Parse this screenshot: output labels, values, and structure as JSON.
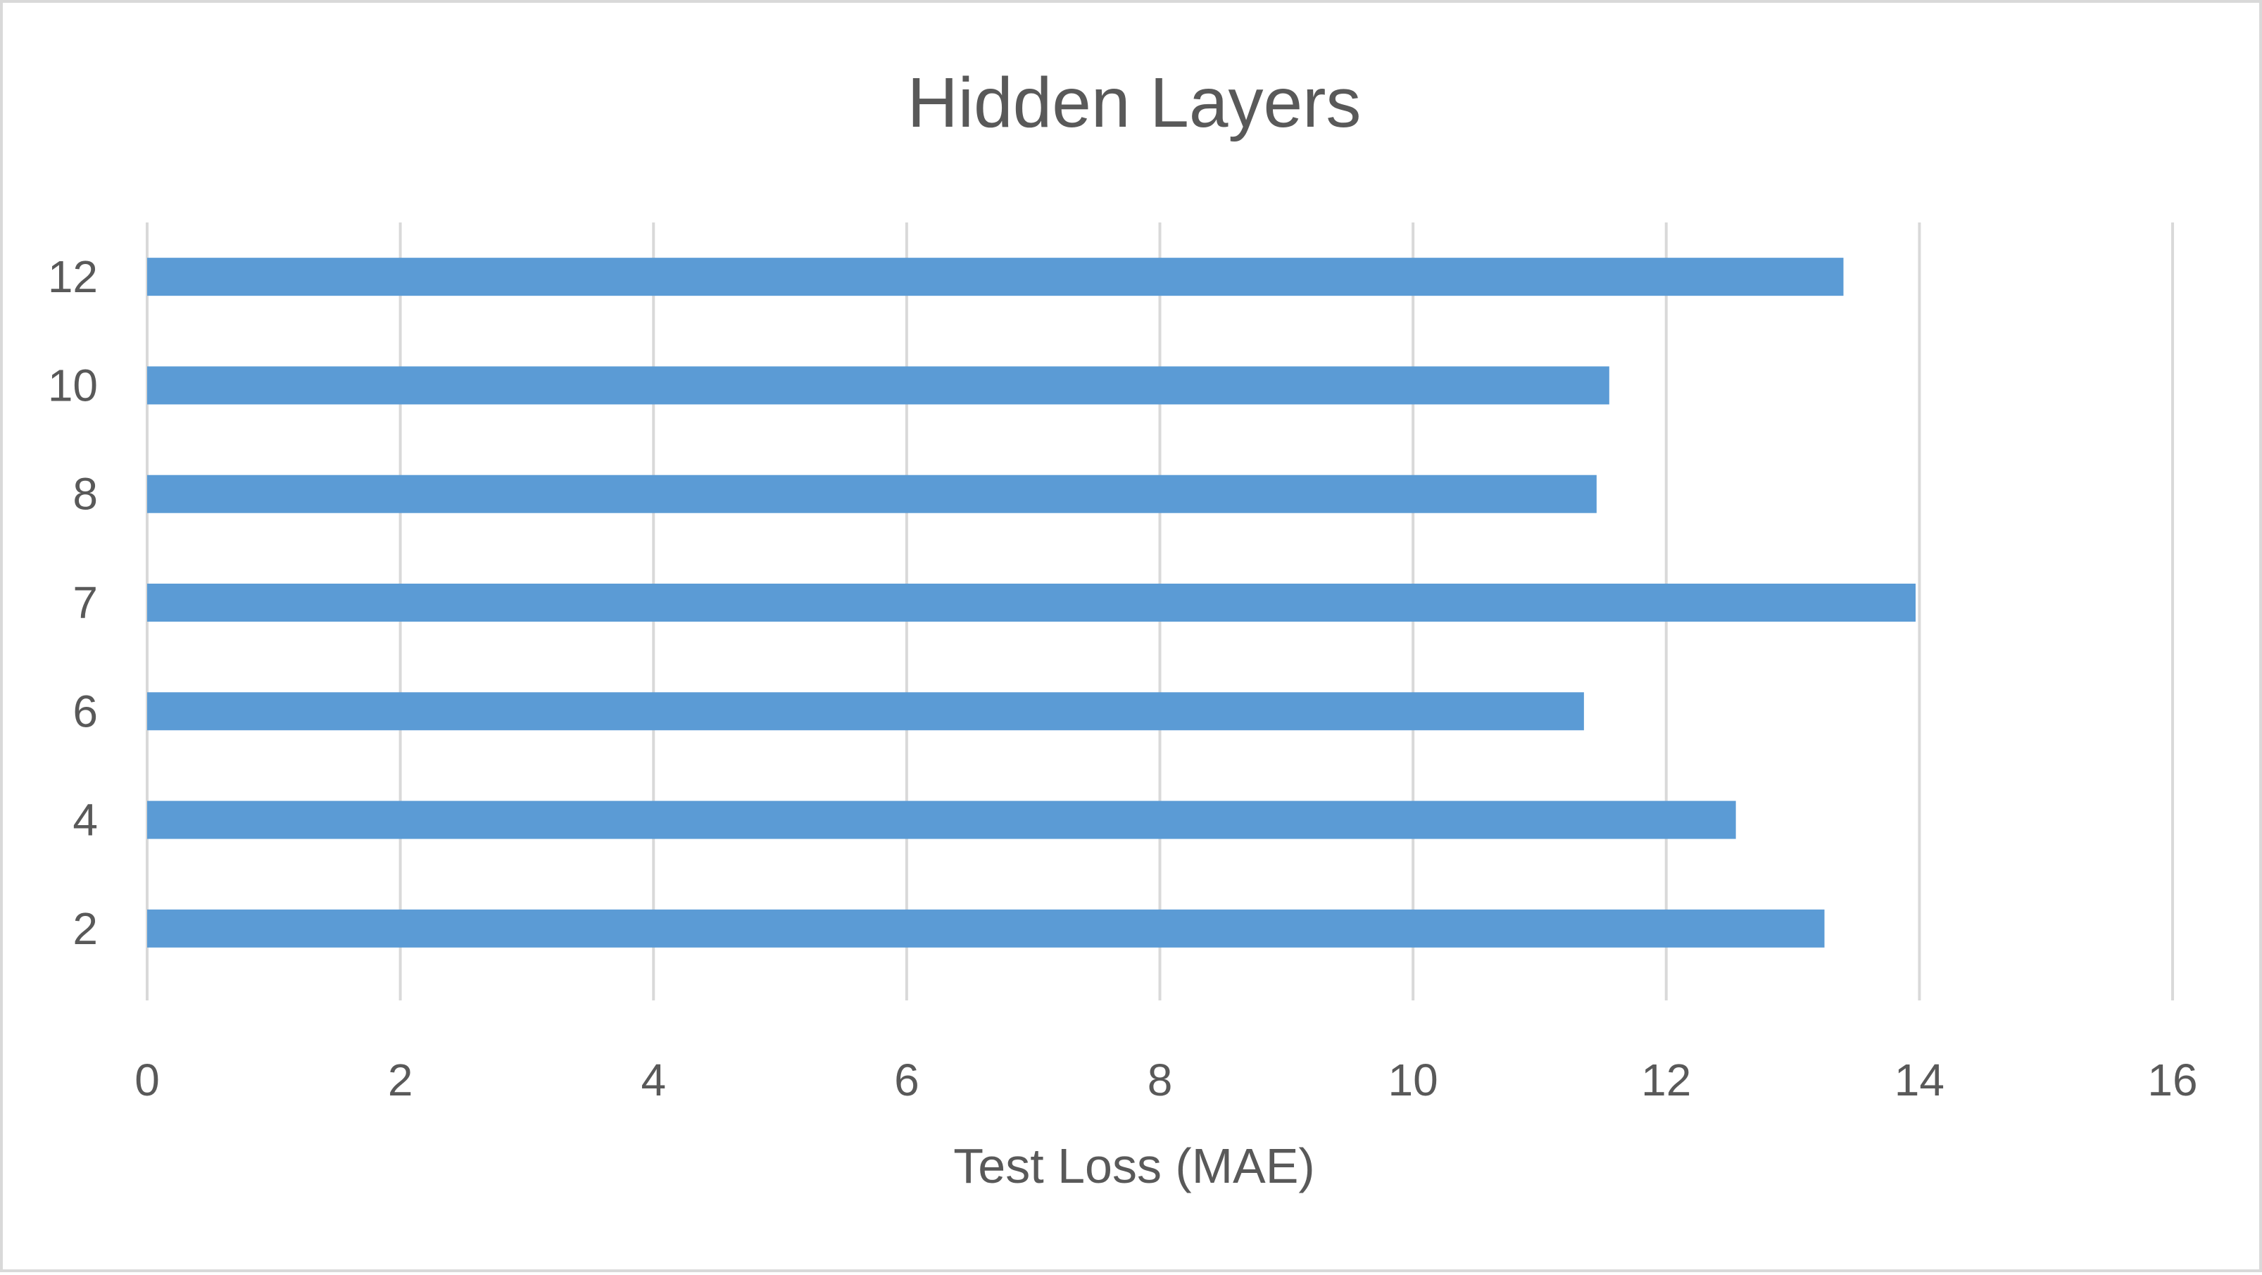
{
  "chart_data": {
    "type": "bar",
    "orientation": "horizontal",
    "title": "Hidden Layers",
    "xlabel": "Test Loss (MAE)",
    "ylabel": "",
    "categories": [
      "2",
      "4",
      "6",
      "7",
      "8",
      "10",
      "12"
    ],
    "values": [
      13.25,
      12.55,
      11.35,
      13.97,
      11.45,
      11.55,
      13.4
    ],
    "xlim": [
      0,
      16
    ],
    "xticks": [
      "0",
      "2",
      "4",
      "6",
      "8",
      "10",
      "12",
      "14",
      "16"
    ],
    "grid": "vertical",
    "legend": "none",
    "colors": {
      "bar": "#5b9bd5",
      "grid": "#d9d9d9",
      "text": "#595959",
      "border": "#d9d9d9"
    }
  }
}
